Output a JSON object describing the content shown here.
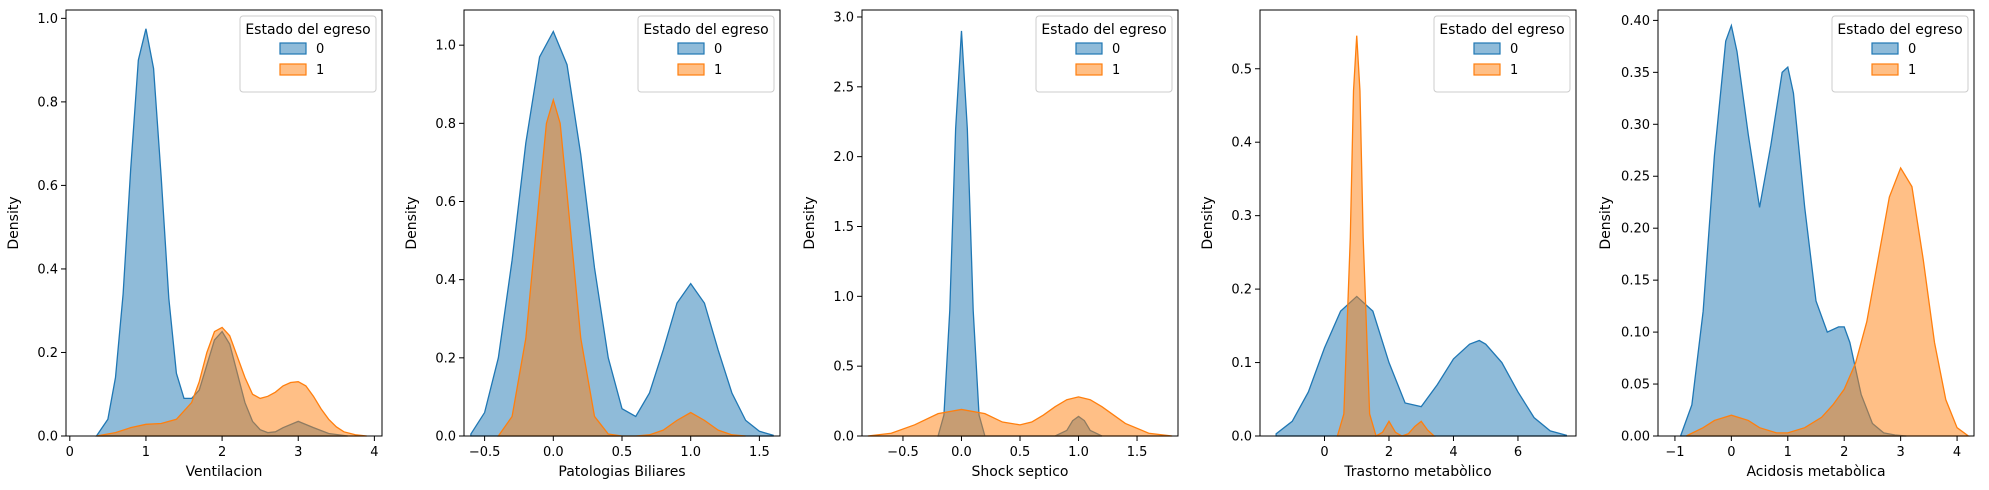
{
  "chart_data": [
    {
      "type": "area",
      "xlabel": "Ventilacion",
      "ylabel": "Density",
      "xlim": [
        -0.05,
        4.1
      ],
      "ylim": [
        0,
        1.02
      ],
      "xticks": [
        0,
        1,
        2,
        3,
        4
      ],
      "yticks": [
        0.0,
        0.2,
        0.4,
        0.6,
        0.8,
        1.0
      ],
      "legend": {
        "title": "Estado del egreso",
        "position": "top-right"
      },
      "series": [
        {
          "name": "0",
          "color": "#1f77b4",
          "x": [
            0.35,
            0.5,
            0.6,
            0.7,
            0.8,
            0.9,
            1.0,
            1.1,
            1.2,
            1.3,
            1.4,
            1.5,
            1.6,
            1.7,
            1.8,
            1.9,
            2.0,
            2.1,
            2.2,
            2.3,
            2.4,
            2.5,
            2.6,
            2.7,
            2.8,
            3.0,
            3.2,
            3.4,
            3.65
          ],
          "y": [
            0.0,
            0.04,
            0.14,
            0.34,
            0.64,
            0.9,
            0.975,
            0.88,
            0.62,
            0.33,
            0.15,
            0.09,
            0.09,
            0.11,
            0.17,
            0.23,
            0.25,
            0.22,
            0.15,
            0.08,
            0.035,
            0.015,
            0.008,
            0.01,
            0.02,
            0.035,
            0.02,
            0.006,
            0.0
          ]
        },
        {
          "name": "1",
          "color": "#ff7f0e",
          "x": [
            0.35,
            0.6,
            0.8,
            1.0,
            1.2,
            1.4,
            1.6,
            1.7,
            1.8,
            1.9,
            2.0,
            2.1,
            2.2,
            2.3,
            2.4,
            2.5,
            2.6,
            2.7,
            2.8,
            2.9,
            3.0,
            3.1,
            3.2,
            3.3,
            3.4,
            3.5,
            3.6,
            3.75,
            3.9
          ],
          "y": [
            0.0,
            0.008,
            0.02,
            0.028,
            0.03,
            0.04,
            0.08,
            0.13,
            0.2,
            0.25,
            0.26,
            0.24,
            0.19,
            0.14,
            0.1,
            0.09,
            0.095,
            0.105,
            0.12,
            0.128,
            0.13,
            0.12,
            0.095,
            0.065,
            0.04,
            0.022,
            0.01,
            0.003,
            0.0
          ]
        }
      ]
    },
    {
      "type": "area",
      "xlabel": "Patologias Biliares",
      "ylabel": "Density",
      "xlim": [
        -0.65,
        1.65
      ],
      "ylim": [
        0,
        1.09
      ],
      "xticks": [
        -0.5,
        0.0,
        0.5,
        1.0,
        1.5
      ],
      "yticks": [
        0.0,
        0.2,
        0.4,
        0.6,
        0.8,
        1.0
      ],
      "legend": {
        "title": "Estado del egreso",
        "position": "top-right"
      },
      "series": [
        {
          "name": "0",
          "color": "#1f77b4",
          "x": [
            -0.6,
            -0.5,
            -0.4,
            -0.3,
            -0.2,
            -0.1,
            0.0,
            0.1,
            0.2,
            0.3,
            0.4,
            0.5,
            0.6,
            0.7,
            0.8,
            0.9,
            1.0,
            1.1,
            1.2,
            1.3,
            1.4,
            1.5,
            1.6
          ],
          "y": [
            0.005,
            0.06,
            0.2,
            0.45,
            0.75,
            0.97,
            1.035,
            0.95,
            0.72,
            0.43,
            0.2,
            0.07,
            0.05,
            0.11,
            0.22,
            0.34,
            0.39,
            0.34,
            0.22,
            0.11,
            0.04,
            0.012,
            0.002
          ]
        },
        {
          "name": "1",
          "color": "#ff7f0e",
          "x": [
            -0.4,
            -0.3,
            -0.2,
            -0.1,
            -0.05,
            0.0,
            0.05,
            0.1,
            0.2,
            0.3,
            0.4,
            0.5,
            0.6,
            0.7,
            0.8,
            0.9,
            1.0,
            1.1,
            1.2,
            1.3,
            1.4
          ],
          "y": [
            0.0,
            0.05,
            0.25,
            0.62,
            0.8,
            0.86,
            0.8,
            0.62,
            0.25,
            0.05,
            0.005,
            0.0,
            0.0,
            0.003,
            0.015,
            0.04,
            0.06,
            0.04,
            0.015,
            0.003,
            0.0
          ]
        }
      ]
    },
    {
      "type": "area",
      "xlabel": "Shock septico",
      "ylabel": "Density",
      "xlim": [
        -0.85,
        1.85
      ],
      "ylim": [
        0,
        3.05
      ],
      "xticks": [
        -0.5,
        0.0,
        0.5,
        1.0,
        1.5
      ],
      "yticks": [
        0.0,
        0.5,
        1.0,
        1.5,
        2.0,
        2.5,
        3.0
      ],
      "legend": {
        "title": "Estado del egreso",
        "position": "top-right"
      },
      "series": [
        {
          "name": "0",
          "color": "#1f77b4",
          "x": [
            -0.2,
            -0.15,
            -0.1,
            -0.05,
            0.0,
            0.05,
            0.1,
            0.15,
            0.2,
            0.3,
            0.8,
            0.9,
            0.95,
            1.0,
            1.05,
            1.1,
            1.2
          ],
          "y": [
            0.0,
            0.15,
            0.9,
            2.2,
            2.9,
            2.2,
            0.9,
            0.15,
            0.0,
            0.0,
            0.0,
            0.04,
            0.11,
            0.14,
            0.11,
            0.04,
            0.0
          ]
        },
        {
          "name": "1",
          "color": "#ff7f0e",
          "x": [
            -0.8,
            -0.6,
            -0.4,
            -0.2,
            0.0,
            0.2,
            0.35,
            0.5,
            0.6,
            0.7,
            0.8,
            0.9,
            1.0,
            1.1,
            1.2,
            1.3,
            1.4,
            1.6,
            1.8
          ],
          "y": [
            0.0,
            0.02,
            0.08,
            0.16,
            0.19,
            0.16,
            0.1,
            0.08,
            0.1,
            0.15,
            0.21,
            0.26,
            0.28,
            0.26,
            0.21,
            0.15,
            0.09,
            0.02,
            0.0
          ]
        }
      ]
    },
    {
      "type": "area",
      "xlabel": "Trastorno metabòlico",
      "ylabel": "Density",
      "xlim": [
        -2.0,
        7.8
      ],
      "ylim": [
        0,
        0.58
      ],
      "xticks": [
        0,
        2,
        4,
        6
      ],
      "yticks": [
        0.0,
        0.1,
        0.2,
        0.3,
        0.4,
        0.5
      ],
      "legend": {
        "title": "Estado del egreso",
        "position": "top-right"
      },
      "series": [
        {
          "name": "0",
          "color": "#1f77b4",
          "x": [
            -1.5,
            -1.0,
            -0.5,
            0.0,
            0.5,
            1.0,
            1.5,
            2.0,
            2.5,
            3.0,
            3.5,
            4.0,
            4.5,
            4.8,
            5.0,
            5.5,
            6.0,
            6.5,
            7.0,
            7.5
          ],
          "y": [
            0.003,
            0.02,
            0.06,
            0.12,
            0.17,
            0.19,
            0.17,
            0.1,
            0.045,
            0.04,
            0.07,
            0.105,
            0.125,
            0.13,
            0.125,
            0.1,
            0.06,
            0.025,
            0.007,
            0.001
          ]
        },
        {
          "name": "1",
          "color": "#ff7f0e",
          "x": [
            0.4,
            0.6,
            0.8,
            0.9,
            1.0,
            1.1,
            1.2,
            1.4,
            1.6,
            1.8,
            2.0,
            2.2,
            2.4,
            2.6,
            2.8,
            3.0,
            3.2,
            3.4
          ],
          "y": [
            0.0,
            0.03,
            0.27,
            0.47,
            0.545,
            0.47,
            0.27,
            0.03,
            0.0,
            0.005,
            0.02,
            0.005,
            0.0,
            0.003,
            0.013,
            0.02,
            0.008,
            0.0
          ]
        }
      ]
    },
    {
      "type": "area",
      "xlabel": "Acidosis metabòlica",
      "ylabel": "Density",
      "xlim": [
        -1.3,
        4.3
      ],
      "ylim": [
        0,
        0.41
      ],
      "xticks": [
        -1,
        0,
        1,
        2,
        3,
        4
      ],
      "yticks": [
        0.0,
        0.05,
        0.1,
        0.15,
        0.2,
        0.25,
        0.3,
        0.35,
        0.4
      ],
      "legend": {
        "title": "Estado del egreso",
        "position": "top-right"
      },
      "series": [
        {
          "name": "0",
          "color": "#1f77b4",
          "x": [
            -0.9,
            -0.7,
            -0.5,
            -0.3,
            -0.1,
            0.0,
            0.1,
            0.3,
            0.5,
            0.7,
            0.9,
            1.0,
            1.1,
            1.3,
            1.5,
            1.7,
            1.9,
            2.0,
            2.1,
            2.3,
            2.5,
            2.7,
            2.9,
            3.1
          ],
          "y": [
            0.0,
            0.03,
            0.12,
            0.27,
            0.38,
            0.395,
            0.37,
            0.29,
            0.22,
            0.28,
            0.35,
            0.355,
            0.33,
            0.22,
            0.13,
            0.1,
            0.105,
            0.105,
            0.09,
            0.04,
            0.012,
            0.003,
            0.001,
            0.0
          ]
        },
        {
          "name": "1",
          "color": "#ff7f0e",
          "x": [
            -0.8,
            -0.5,
            -0.3,
            0.0,
            0.3,
            0.5,
            0.8,
            1.0,
            1.3,
            1.6,
            1.8,
            2.0,
            2.2,
            2.4,
            2.6,
            2.8,
            3.0,
            3.2,
            3.4,
            3.6,
            3.8,
            4.0,
            4.2
          ],
          "y": [
            0.0,
            0.008,
            0.015,
            0.02,
            0.015,
            0.008,
            0.003,
            0.003,
            0.008,
            0.018,
            0.03,
            0.045,
            0.07,
            0.11,
            0.17,
            0.23,
            0.258,
            0.24,
            0.17,
            0.09,
            0.035,
            0.008,
            0.0
          ]
        }
      ]
    }
  ]
}
